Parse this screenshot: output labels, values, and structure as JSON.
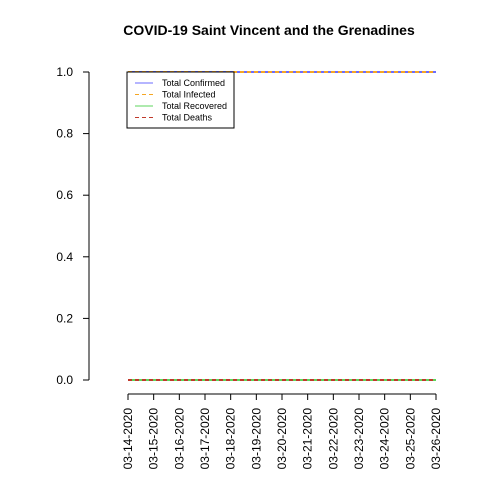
{
  "chart_data": {
    "type": "line",
    "title": "COVID-19 Saint Vincent and the Grenadines",
    "xlabel": "",
    "ylabel": "",
    "categories": [
      "03-14-2020",
      "03-15-2020",
      "03-16-2020",
      "03-17-2020",
      "03-18-2020",
      "03-19-2020",
      "03-20-2020",
      "03-21-2020",
      "03-22-2020",
      "03-23-2020",
      "03-24-2020",
      "03-25-2020",
      "03-26-2020"
    ],
    "y_ticks": [
      "0.0",
      "0.2",
      "0.4",
      "0.6",
      "0.8",
      "1.0"
    ],
    "ylim": [
      0,
      1
    ],
    "grid": false,
    "legend_position": "top-left",
    "series": [
      {
        "name": "Total Confirmed",
        "color": "#6b6bff",
        "dash": "solid",
        "values": [
          1,
          1,
          1,
          1,
          1,
          1,
          1,
          1,
          1,
          1,
          1,
          1,
          1
        ]
      },
      {
        "name": "Total Infected",
        "color": "#f5a623",
        "dash": "dashed",
        "values": [
          1,
          1,
          1,
          1,
          1,
          1,
          1,
          1,
          1,
          1,
          1,
          1,
          1
        ]
      },
      {
        "name": "Total Recovered",
        "color": "#5cd65c",
        "dash": "solid",
        "values": [
          0,
          0,
          0,
          0,
          0,
          0,
          0,
          0,
          0,
          0,
          0,
          0,
          0
        ]
      },
      {
        "name": "Total Deaths",
        "color": "#c0392b",
        "dash": "dashed",
        "values": [
          0,
          0,
          0,
          0,
          0,
          0,
          0,
          0,
          0,
          0,
          0,
          0,
          0
        ]
      }
    ]
  }
}
